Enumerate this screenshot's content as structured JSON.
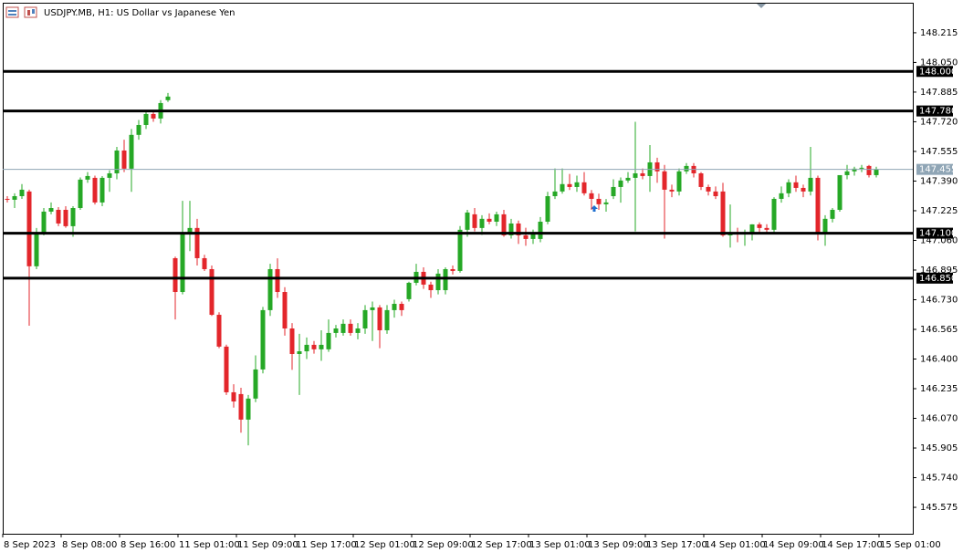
{
  "chart_data": {
    "type": "candlestick",
    "title": "USDJPY.MB, H1:  US Dollar vs Japanese Yen",
    "x_labels": [
      "8 Sep 2023",
      "8 Sep 08:00",
      "8 Sep 16:00",
      "11 Sep 01:00",
      "11 Sep 09:00",
      "11 Sep 17:00",
      "12 Sep 01:00",
      "12 Sep 09:00",
      "12 Sep 17:00",
      "13 Sep 01:00",
      "13 Sep 09:00",
      "13 Sep 17:00",
      "14 Sep 01:00",
      "14 Sep 09:00",
      "14 Sep 17:00",
      "15 Sep 01:00"
    ],
    "up_color": "#26a826",
    "down_color": "#e3262b",
    "open": [
      147.291,
      147.286,
      147.306,
      147.332,
      146.916,
      147.103,
      147.22,
      147.23,
      147.23,
      147.139,
      147.24,
      147.398,
      147.408,
      147.271,
      147.408,
      147.433,
      147.56,
      147.459,
      147.647,
      147.702,
      147.763,
      147.738,
      147.84,
      146.961,
      146.773,
      147.103,
      147.129,
      146.961,
      146.9,
      146.646,
      146.469,
      146.215,
      146.205,
      146.063,
      146.18,
      146.342,
      146.672,
      146.9,
      146.773,
      146.57,
      146.428,
      146.443,
      146.479,
      146.454,
      146.454,
      146.545,
      146.545,
      146.596,
      146.545,
      146.57,
      146.672,
      146.687,
      146.56,
      146.672,
      146.707,
      146.733,
      146.824,
      146.885,
      146.814,
      146.783,
      146.783,
      146.9,
      146.89,
      147.119,
      147.205,
      147.129,
      147.18,
      147.164,
      147.205,
      147.088,
      147.154,
      147.088,
      147.068,
      147.068,
      147.164,
      147.306,
      147.332,
      147.373,
      147.357,
      147.383,
      147.322,
      147.291,
      147.261,
      147.306,
      147.357,
      147.393,
      147.408,
      147.433,
      147.418,
      147.494,
      147.444,
      147.342,
      147.332,
      147.444,
      147.474,
      147.433,
      147.357,
      147.332,
      147.332,
      147.088,
      147.103,
      147.098,
      147.098,
      147.149,
      147.129,
      147.119,
      147.291,
      147.322,
      147.383,
      147.352,
      147.332,
      147.408,
      147.103,
      147.18,
      147.23,
      147.423,
      147.444,
      147.459,
      147.474,
      147.423
    ],
    "high": [
      147.306,
      147.322,
      147.373,
      147.342,
      147.129,
      147.24,
      147.271,
      147.245,
      147.25,
      147.25,
      147.41,
      147.44,
      147.42,
      147.418,
      147.45,
      147.58,
      147.62,
      147.68,
      147.73,
      147.78,
      147.78,
      147.84,
      147.88,
      146.97,
      147.28,
      147.28,
      147.18,
      146.98,
      146.92,
      146.66,
      146.48,
      146.26,
      146.24,
      146.2,
      146.42,
      146.69,
      146.93,
      146.96,
      146.8,
      146.6,
      146.54,
      146.52,
      146.5,
      146.56,
      146.62,
      146.59,
      146.62,
      146.62,
      146.6,
      146.7,
      146.72,
      146.7,
      146.7,
      146.73,
      146.72,
      146.83,
      146.93,
      146.91,
      146.83,
      146.9,
      146.91,
      146.92,
      147.14,
      147.23,
      147.24,
      147.2,
      147.21,
      147.22,
      147.23,
      147.18,
      147.17,
      147.13,
      147.12,
      147.19,
      147.33,
      147.46,
      147.46,
      147.43,
      147.42,
      147.44,
      147.34,
      147.32,
      147.29,
      147.4,
      147.41,
      147.44,
      147.72,
      147.46,
      147.59,
      147.52,
      147.48,
      147.37,
      147.46,
      147.49,
      147.49,
      147.44,
      147.37,
      147.36,
      147.38,
      147.26,
      147.13,
      147.12,
      147.15,
      147.16,
      147.15,
      147.3,
      147.36,
      147.4,
      147.42,
      147.37,
      147.58,
      147.42,
      147.2,
      147.24,
      147.42,
      147.48,
      147.47,
      147.48,
      147.48,
      147.47
    ],
    "low": [
      147.271,
      147.24,
      147.291,
      146.585,
      146.9,
      147.088,
      147.205,
      147.139,
      147.13,
      147.08,
      147.23,
      147.38,
      147.26,
      147.25,
      147.33,
      147.4,
      147.44,
      147.33,
      147.62,
      147.68,
      147.72,
      147.71,
      147.83,
      146.62,
      146.76,
      147.0,
      146.92,
      146.89,
      146.64,
      146.46,
      146.2,
      146.13,
      145.99,
      145.92,
      146.16,
      146.32,
      146.64,
      146.74,
      146.53,
      146.34,
      146.2,
      146.4,
      146.43,
      146.39,
      146.44,
      146.52,
      146.53,
      146.53,
      146.51,
      146.54,
      146.5,
      146.46,
      146.54,
      146.63,
      146.64,
      146.72,
      146.81,
      146.79,
      146.74,
      146.76,
      146.76,
      146.87,
      146.88,
      147.08,
      147.11,
      147.09,
      147.15,
      147.14,
      147.08,
      147.07,
      147.04,
      147.03,
      147.04,
      147.05,
      147.15,
      147.29,
      147.32,
      147.34,
      147.33,
      147.31,
      147.23,
      147.23,
      147.22,
      147.29,
      147.27,
      147.38,
      147.11,
      147.4,
      147.33,
      147.38,
      147.07,
      147.3,
      147.31,
      147.43,
      147.41,
      147.34,
      147.31,
      147.29,
      147.08,
      147.02,
      147.05,
      147.03,
      147.06,
      147.1,
      147.1,
      147.1,
      147.27,
      147.3,
      147.33,
      147.3,
      147.31,
      147.06,
      147.03,
      147.16,
      147.22,
      147.4,
      147.42,
      147.44,
      147.41,
      147.41
    ],
    "close": [
      147.286,
      147.306,
      147.342,
      146.916,
      147.103,
      147.22,
      147.24,
      147.154,
      147.139,
      147.24,
      147.398,
      147.418,
      147.271,
      147.408,
      147.433,
      147.56,
      147.459,
      147.647,
      147.702,
      147.763,
      147.738,
      147.824,
      147.86,
      146.773,
      147.103,
      147.129,
      146.961,
      146.9,
      146.646,
      146.469,
      146.215,
      146.164,
      146.063,
      146.18,
      146.342,
      146.672,
      146.9,
      146.773,
      146.57,
      146.428,
      146.443,
      146.479,
      146.454,
      146.479,
      146.545,
      146.57,
      146.596,
      146.545,
      146.57,
      146.672,
      146.687,
      146.56,
      146.672,
      146.707,
      146.672,
      146.824,
      146.885,
      146.814,
      146.783,
      146.875,
      146.9,
      146.89,
      147.119,
      147.215,
      147.129,
      147.18,
      147.164,
      147.205,
      147.088,
      147.154,
      147.088,
      147.068,
      147.103,
      147.164,
      147.306,
      147.332,
      147.373,
      147.357,
      147.383,
      147.322,
      147.291,
      147.261,
      147.271,
      147.357,
      147.393,
      147.408,
      147.433,
      147.418,
      147.494,
      147.444,
      147.342,
      147.332,
      147.444,
      147.474,
      147.433,
      147.357,
      147.332,
      147.306,
      147.088,
      147.103,
      147.098,
      147.098,
      147.149,
      147.129,
      147.119,
      147.291,
      147.322,
      147.383,
      147.352,
      147.332,
      147.408,
      147.103,
      147.18,
      147.23,
      147.423,
      147.444,
      147.459,
      147.464,
      147.423,
      147.455
    ],
    "ylim": [
      145.428,
      148.377
    ],
    "yticks": [
      145.575,
      {
        "value": 145.74,
        "label": "145.740"
      },
      145.905,
      {
        "value": 146.07,
        "label": "146.070"
      },
      146.235,
      {
        "value": 146.4,
        "label": "146.400"
      },
      146.565,
      {
        "value": 146.73,
        "label": "146.730"
      },
      146.895,
      {
        "value": 147.06,
        "label": "147.060"
      },
      147.225,
      {
        "value": 147.39,
        "label": "147.390"
      },
      147.555,
      {
        "value": 147.72,
        "label": "147.720"
      },
      147.885,
      {
        "value": 148.05,
        "label": "148.050"
      },
      148.215
    ],
    "levels": [
      {
        "value": 148,
        "label": "148.000"
      },
      {
        "value": 147.78,
        "label": "147.780"
      },
      {
        "value": 147.1,
        "label": "147.100"
      },
      {
        "value": 146.85,
        "label": "146.850"
      }
    ],
    "level_color": "#000000",
    "current_price": 147.455,
    "current_price_color": "#8fa5b5"
  }
}
